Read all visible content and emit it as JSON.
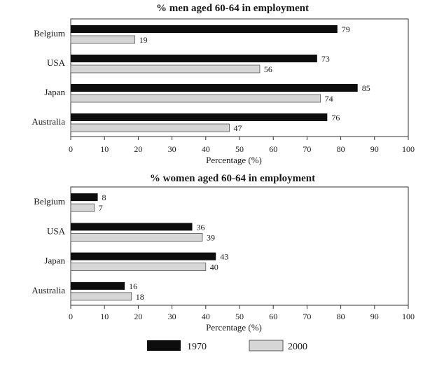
{
  "colors": {
    "s1970": "#0d0d0d",
    "s2000": "#d6d6d6",
    "axis": "#333333",
    "outline": "#555555"
  },
  "legend": {
    "items": [
      {
        "label": "1970",
        "color": "#0d0d0d"
      },
      {
        "label": "2000",
        "color": "#d6d6d6"
      }
    ],
    "placement": "bottom"
  },
  "chart_data": [
    {
      "type": "bar",
      "orientation": "horizontal",
      "title": "% men aged 60-64 in employment",
      "xlabel": "Percentage (%)",
      "ylabel": "",
      "xlim": [
        0,
        100
      ],
      "xticks": [
        "0",
        "10",
        "20",
        "30",
        "40",
        "50",
        "60",
        "70",
        "80",
        "90",
        "100"
      ],
      "categories": [
        "Belgium",
        "USA",
        "Japan",
        "Australia"
      ],
      "series": [
        {
          "name": "1970",
          "values": [
            79,
            73,
            85,
            76
          ]
        },
        {
          "name": "2000",
          "values": [
            19,
            56,
            74,
            47
          ]
        }
      ],
      "grid": false
    },
    {
      "type": "bar",
      "orientation": "horizontal",
      "title": "% women aged 60-64 in employment",
      "xlabel": "Percentage (%)",
      "ylabel": "",
      "xlim": [
        0,
        100
      ],
      "xticks": [
        "0",
        "10",
        "20",
        "30",
        "40",
        "50",
        "60",
        "70",
        "80",
        "90",
        "100"
      ],
      "categories": [
        "Belgium",
        "USA",
        "Japan",
        "Australia"
      ],
      "series": [
        {
          "name": "1970",
          "values": [
            8,
            36,
            43,
            16
          ]
        },
        {
          "name": "2000",
          "values": [
            7,
            39,
            40,
            18
          ]
        }
      ],
      "grid": false
    }
  ]
}
